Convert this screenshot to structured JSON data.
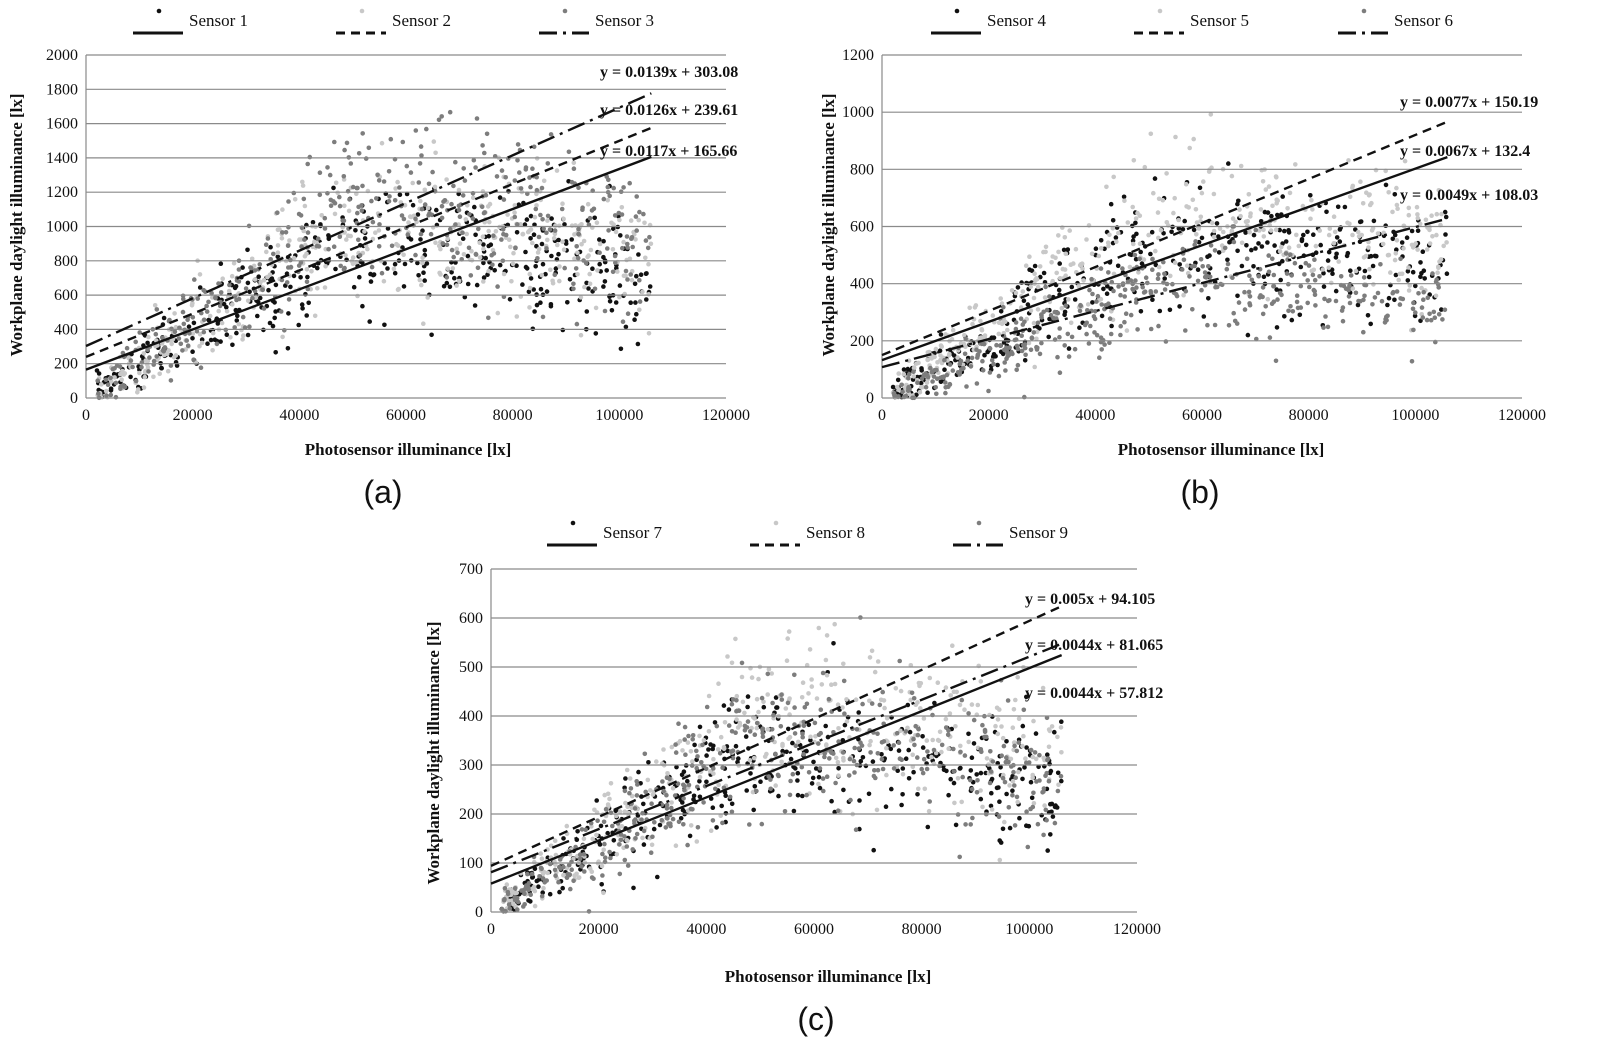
{
  "chart_data": [
    {
      "type": "scatter",
      "panel_label": "(a)",
      "xlabel": "Photosensor illuminance [lx]",
      "ylabel": "Workplane daylight illuminance [lx]",
      "xlim": [
        0,
        120000
      ],
      "ylim": [
        0,
        2000
      ],
      "xticks": [
        "0",
        "20000",
        "40000",
        "60000",
        "80000",
        "100000",
        "120000"
      ],
      "yticks": [
        "0",
        "200",
        "400",
        "600",
        "800",
        "1000",
        "1200",
        "1400",
        "1600",
        "1800",
        "2000"
      ],
      "grid": true,
      "legend_position": "top",
      "series": [
        {
          "name": "Sensor 1",
          "color": "#111111",
          "line": "solid",
          "slope": 0.0117,
          "intercept": 165.66,
          "trend_x": [
            0,
            106000
          ]
        },
        {
          "name": "Sensor 2",
          "color": "#c8c8c8",
          "line": "dashed",
          "slope": 0.0126,
          "intercept": 239.61,
          "trend_x": [
            0,
            106000
          ]
        },
        {
          "name": "Sensor 3",
          "color": "#7d7d7d",
          "line": "dashdot",
          "slope": 0.0139,
          "intercept": 303.08,
          "trend_x": [
            0,
            106000
          ]
        }
      ],
      "equations": [
        "y = 0.0139x + 303.08",
        "y = 0.0126x + 239.61",
        "y = 0.0117x + 165.66"
      ]
    },
    {
      "type": "scatter",
      "panel_label": "(b)",
      "xlabel": "Photosensor illuminance [lx]",
      "ylabel": "Workplane daylight illuminance [lx]",
      "xlim": [
        0,
        120000
      ],
      "ylim": [
        0,
        1200
      ],
      "xticks": [
        "0",
        "20000",
        "40000",
        "60000",
        "80000",
        "100000",
        "120000"
      ],
      "yticks": [
        "0",
        "200",
        "400",
        "600",
        "800",
        "1000",
        "1200"
      ],
      "grid": true,
      "legend_position": "top",
      "series": [
        {
          "name": "Sensor 4",
          "color": "#111111",
          "line": "solid",
          "slope": 0.0067,
          "intercept": 132.4,
          "trend_x": [
            0,
            106000
          ]
        },
        {
          "name": "Sensor 5",
          "color": "#c8c8c8",
          "line": "dashed",
          "slope": 0.0077,
          "intercept": 150.19,
          "trend_x": [
            0,
            106000
          ]
        },
        {
          "name": "Sensor 6",
          "color": "#7d7d7d",
          "line": "dashdot",
          "slope": 0.0049,
          "intercept": 108.03,
          "trend_x": [
            0,
            106000
          ]
        }
      ],
      "equations": [
        "y = 0.0077x + 150.19",
        "y = 0.0067x + 132.4",
        "y = 0.0049x + 108.03"
      ]
    },
    {
      "type": "scatter",
      "panel_label": "(c)",
      "xlabel": "Photosensor illuminance [lx]",
      "ylabel": "Workplane daylight illuminance [lx]",
      "xlim": [
        0,
        120000
      ],
      "ylim": [
        0,
        700
      ],
      "xticks": [
        "0",
        "20000",
        "40000",
        "60000",
        "80000",
        "100000",
        "120000"
      ],
      "yticks": [
        "0",
        "100",
        "200",
        "300",
        "400",
        "500",
        "600",
        "700"
      ],
      "grid": true,
      "legend_position": "top",
      "series": [
        {
          "name": "Sensor 7",
          "color": "#111111",
          "line": "solid",
          "slope": 0.0044,
          "intercept": 57.812,
          "trend_x": [
            0,
            106000
          ]
        },
        {
          "name": "Sensor 8",
          "color": "#c8c8c8",
          "line": "dashed",
          "slope": 0.005,
          "intercept": 94.105,
          "trend_x": [
            0,
            106000
          ]
        },
        {
          "name": "Sensor 9",
          "color": "#7d7d7d",
          "line": "dashdot",
          "slope": 0.0044,
          "intercept": 81.065,
          "trend_x": [
            0,
            106000
          ]
        }
      ],
      "equations": [
        "y = 0.005x + 94.105",
        "y = 0.0044x + 81.065",
        "y = 0.0044x + 57.812"
      ]
    }
  ]
}
